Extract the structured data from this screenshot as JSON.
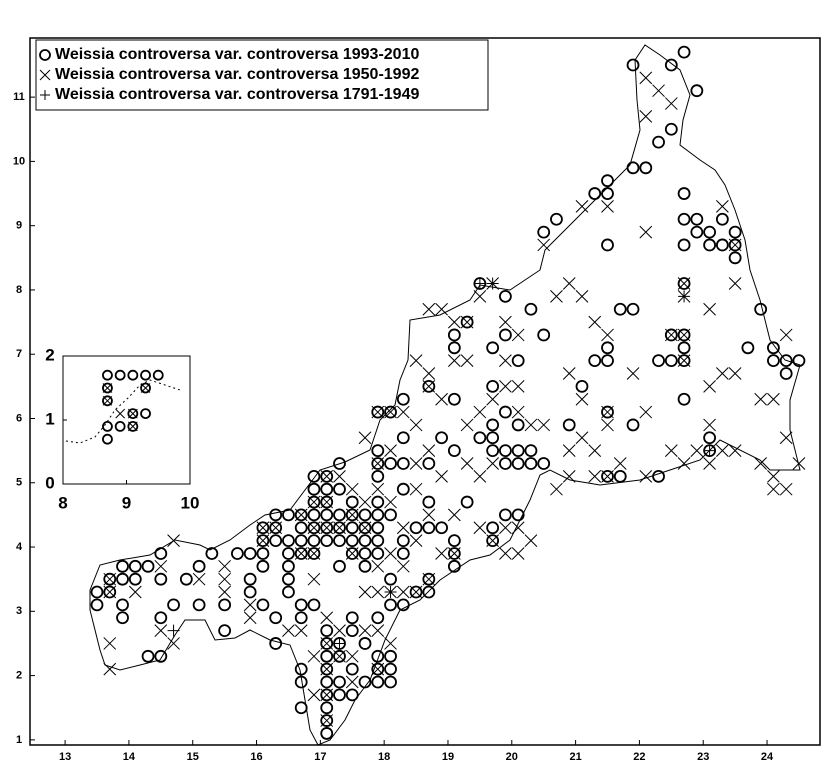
{
  "chart_data": [
    {
      "type": "scatter",
      "legend": "upper left",
      "xlim": [
        12.45,
        24.83
      ],
      "ylim": [
        0.92,
        11.92
      ],
      "xticks": [
        13,
        14,
        15,
        16,
        17,
        18,
        19,
        20,
        21,
        22,
        23,
        24
      ],
      "yticks": [
        1,
        2,
        3,
        4,
        5,
        6,
        7,
        8,
        9,
        10,
        11
      ],
      "series": [
        {
          "name": "Weissia controversa var. controversa 1993-2010",
          "marker": "circle",
          "color": "#000000",
          "x": [
            13.5,
            13.5,
            13.7,
            13.7,
            13.9,
            13.9,
            13.9,
            13.9,
            14.1,
            14.1,
            14.3,
            14.3,
            14.5,
            14.5,
            14.5,
            14.5,
            14.7,
            14.9,
            15.1,
            15.1,
            15.3,
            15.5,
            15.5,
            15.7,
            15.9,
            15.9,
            15.9,
            16.1,
            16.1,
            16.1,
            16.1,
            16.1,
            16.3,
            16.3,
            16.3,
            16.3,
            16.3,
            16.5,
            16.5,
            16.5,
            16.5,
            16.5,
            16.5,
            16.7,
            16.7,
            16.7,
            16.7,
            16.7,
            16.7,
            16.7,
            16.7,
            16.7,
            16.9,
            16.9,
            16.9,
            16.9,
            16.9,
            16.9,
            16.9,
            16.9,
            17.1,
            17.1,
            17.1,
            17.1,
            17.1,
            17.1,
            17.1,
            17.1,
            17.1,
            17.1,
            17.1,
            17.1,
            17.1,
            17.1,
            17.1,
            17.3,
            17.3,
            17.3,
            17.3,
            17.3,
            17.3,
            17.3,
            17.3,
            17.3,
            17.3,
            17.5,
            17.5,
            17.5,
            17.5,
            17.5,
            17.5,
            17.5,
            17.5,
            17.5,
            17.7,
            17.7,
            17.7,
            17.7,
            17.7,
            17.7,
            17.7,
            17.9,
            17.9,
            17.9,
            17.9,
            17.9,
            17.9,
            17.9,
            17.9,
            17.9,
            17.9,
            17.9,
            17.9,
            17.9,
            18.1,
            18.1,
            18.1,
            18.1,
            18.1,
            18.1,
            18.1,
            18.1,
            18.3,
            18.3,
            18.3,
            18.3,
            18.3,
            18.3,
            18.3,
            18.5,
            18.5,
            18.7,
            18.7,
            18.7,
            18.7,
            18.7,
            18.7,
            18.9,
            18.9,
            19.1,
            19.1,
            19.1,
            19.1,
            19.1,
            19.1,
            19.1,
            19.3,
            19.3,
            19.5,
            19.5,
            19.7,
            19.7,
            19.7,
            19.7,
            19.7,
            19.7,
            19.7,
            19.9,
            19.9,
            19.9,
            19.9,
            19.9,
            19.9,
            20.1,
            20.1,
            20.1,
            20.1,
            20.1,
            20.3,
            20.3,
            20.3,
            20.5,
            20.5,
            20.5,
            20.7,
            20.9,
            21.1,
            21.3,
            21.3,
            21.5,
            21.5,
            21.5,
            21.5,
            21.5,
            21.5,
            21.5,
            21.7,
            21.7,
            21.9,
            21.9,
            21.9,
            21.9,
            22.1,
            22.3,
            22.3,
            22.3,
            22.5,
            22.5,
            22.5,
            22.5,
            22.7,
            22.7,
            22.7,
            22.7,
            22.7,
            22.7,
            22.7,
            22.7,
            22.7,
            22.9,
            22.9,
            22.9,
            23.1,
            23.1,
            23.1,
            23.1,
            23.3,
            23.3,
            23.5,
            23.5,
            23.5,
            23.7,
            23.9,
            24.1,
            24.1,
            24.3,
            24.3,
            24.5
          ],
          "values": [
            3.3,
            3.1,
            3.5,
            3.3,
            3.7,
            3.5,
            3.1,
            2.9,
            3.7,
            3.5,
            3.7,
            2.3,
            3.9,
            3.5,
            2.9,
            2.3,
            3.1,
            3.5,
            3.7,
            3.1,
            3.9,
            3.1,
            2.7,
            3.9,
            3.9,
            3.5,
            3.3,
            4.3,
            4.1,
            3.9,
            3.7,
            3.1,
            4.5,
            4.3,
            4.1,
            2.9,
            2.5,
            4.5,
            4.1,
            3.9,
            3.7,
            3.5,
            3.3,
            4.5,
            4.3,
            4.1,
            3.9,
            3.1,
            2.9,
            2.1,
            1.9,
            1.5,
            5.1,
            4.9,
            4.7,
            4.5,
            4.3,
            4.1,
            3.9,
            3.1,
            5.1,
            4.9,
            4.7,
            4.5,
            4.3,
            4.1,
            2.7,
            2.5,
            2.3,
            2.1,
            1.9,
            1.7,
            1.5,
            1.3,
            1.1,
            5.3,
            4.9,
            4.5,
            4.3,
            4.1,
            3.7,
            2.5,
            2.3,
            1.9,
            1.7,
            4.7,
            4.5,
            4.3,
            4.1,
            3.9,
            2.9,
            2.7,
            2.1,
            1.7,
            4.5,
            4.3,
            4.1,
            3.9,
            3.7,
            2.5,
            1.9,
            6.1,
            5.5,
            5.3,
            5.1,
            4.7,
            4.5,
            4.3,
            4.1,
            3.9,
            2.9,
            2.3,
            2.1,
            1.9,
            6.1,
            5.3,
            4.5,
            3.5,
            3.1,
            2.3,
            2.1,
            1.9,
            6.3,
            5.7,
            5.3,
            4.9,
            4.1,
            3.9,
            3.1,
            4.3,
            3.3,
            6.5,
            5.3,
            4.7,
            4.3,
            3.5,
            3.3,
            5.7,
            4.3,
            7.3,
            7.1,
            6.3,
            5.5,
            4.1,
            3.9,
            3.7,
            7.5,
            4.7,
            8.1,
            5.7,
            7.1,
            6.5,
            5.9,
            5.7,
            5.5,
            4.3,
            4.1,
            7.9,
            7.3,
            6.1,
            5.5,
            5.3,
            4.5,
            6.9,
            5.9,
            5.5,
            5.3,
            4.5,
            7.7,
            5.5,
            5.3,
            8.9,
            7.3,
            5.3,
            9.1,
            5.9,
            6.5,
            9.5,
            6.9,
            9.7,
            9.5,
            8.7,
            7.1,
            6.9,
            6.1,
            5.1,
            7.7,
            5.1,
            11.5,
            9.9,
            7.7,
            5.9,
            9.9,
            10.3,
            6.9,
            5.1,
            11.5,
            10.5,
            7.3,
            6.9,
            11.7,
            9.5,
            9.1,
            8.7,
            8.1,
            7.3,
            7.1,
            6.9,
            6.3,
            11.1,
            9.1,
            8.9,
            8.9,
            8.7,
            5.7,
            5.5,
            9.1,
            8.7,
            8.9,
            8.7,
            8.5,
            7.1,
            7.7,
            7.1,
            6.9,
            6.9,
            6.7,
            6.9
          ]
        },
        {
          "name": "Weissia controversa var. controversa 1950-1992",
          "marker": "x",
          "color": "#000000",
          "x": [
            13.7,
            13.7,
            13.7,
            13.7,
            14.1,
            14.5,
            14.5,
            14.7,
            14.7,
            15.1,
            15.5,
            15.5,
            15.5,
            15.9,
            15.9,
            16.1,
            16.1,
            16.3,
            16.5,
            16.7,
            16.7,
            16.7,
            16.9,
            16.9,
            16.9,
            16.9,
            16.9,
            16.9,
            17.1,
            17.1,
            17.1,
            17.1,
            17.1,
            17.1,
            17.1,
            17.1,
            17.3,
            17.3,
            17.3,
            17.3,
            17.5,
            17.5,
            17.5,
            17.5,
            17.5,
            17.7,
            17.7,
            17.7,
            17.7,
            17.7,
            17.9,
            17.9,
            17.9,
            17.9,
            17.9,
            17.9,
            17.9,
            18.1,
            18.1,
            18.1,
            18.1,
            18.1,
            18.1,
            18.3,
            18.3,
            18.3,
            18.3,
            18.5,
            18.5,
            18.5,
            18.5,
            18.5,
            18.5,
            18.7,
            18.7,
            18.7,
            18.7,
            18.7,
            18.7,
            18.9,
            18.9,
            18.9,
            18.9,
            19.1,
            19.1,
            19.1,
            19.1,
            19.3,
            19.3,
            19.3,
            19.3,
            19.5,
            19.5,
            19.5,
            19.5,
            19.7,
            19.7,
            19.7,
            19.7,
            19.9,
            19.9,
            19.9,
            19.9,
            19.9,
            20.1,
            20.1,
            20.1,
            20.1,
            20.1,
            20.3,
            20.3,
            20.5,
            20.5,
            20.7,
            20.7,
            20.9,
            20.9,
            20.9,
            20.9,
            21.1,
            21.1,
            21.1,
            21.1,
            21.3,
            21.3,
            21.3,
            21.5,
            21.5,
            21.5,
            21.5,
            21.5,
            21.7,
            21.9,
            22.1,
            22.1,
            22.1,
            22.1,
            22.1,
            22.3,
            22.5,
            22.5,
            22.5,
            22.7,
            22.7,
            22.7,
            22.7,
            22.7,
            22.9,
            23.1,
            23.1,
            23.1,
            23.1,
            23.3,
            23.3,
            23.3,
            23.5,
            23.5,
            23.5,
            23.5,
            23.9,
            23.9,
            24.1,
            24.1,
            24.1,
            24.3,
            24.3,
            24.3,
            24.5
          ],
          "values": [
            3.5,
            3.3,
            2.5,
            2.1,
            3.3,
            3.7,
            2.7,
            4.1,
            2.5,
            3.5,
            3.7,
            3.5,
            3.3,
            3.1,
            2.9,
            4.3,
            4.1,
            4.3,
            2.7,
            4.5,
            3.9,
            2.7,
            4.7,
            4.3,
            3.9,
            3.5,
            2.3,
            1.7,
            5.1,
            4.7,
            4.3,
            2.9,
            2.5,
            2.1,
            1.7,
            1.3,
            5.1,
            4.3,
            2.7,
            2.3,
            4.9,
            4.5,
            3.9,
            2.3,
            1.9,
            5.7,
            4.7,
            4.3,
            3.3,
            2.7,
            6.1,
            5.3,
            4.9,
            3.7,
            3.3,
            2.7,
            2.1,
            6.1,
            5.5,
            4.7,
            3.9,
            3.3,
            2.5,
            6.1,
            4.3,
            3.7,
            3.3,
            6.9,
            5.9,
            5.3,
            4.9,
            4.1,
            3.3,
            7.7,
            6.7,
            6.5,
            5.5,
            4.5,
            3.5,
            7.7,
            6.3,
            5.1,
            3.9,
            7.5,
            6.9,
            4.5,
            3.9,
            7.5,
            6.9,
            5.9,
            5.3,
            7.9,
            6.1,
            5.1,
            4.3,
            8.1,
            6.3,
            5.3,
            4.1,
            7.5,
            6.9,
            6.5,
            4.3,
            3.9,
            7.3,
            6.5,
            6.1,
            4.3,
            3.9,
            5.9,
            4.1,
            8.7,
            5.9,
            7.9,
            4.9,
            8.1,
            6.7,
            5.5,
            5.1,
            9.3,
            7.9,
            6.3,
            5.7,
            7.5,
            5.5,
            5.1,
            9.3,
            7.3,
            6.1,
            5.9,
            5.1,
            5.3,
            6.7,
            11.3,
            10.7,
            8.9,
            6.1,
            5.1,
            11.1,
            10.9,
            7.3,
            5.5,
            8.1,
            7.9,
            7.3,
            6.9,
            5.3,
            5.5,
            7.7,
            6.5,
            5.9,
            5.3,
            9.3,
            6.7,
            5.5,
            8.7,
            8.1,
            6.7,
            5.5,
            5.3,
            6.3,
            6.3,
            5.1,
            4.9,
            7.3,
            5.7,
            4.9,
            5.3
          ]
        },
        {
          "name": "Weissia controversa var. controversa 1791-1949",
          "marker": "plus",
          "color": "#000000",
          "x": [
            14.7,
            17.3,
            18.1,
            19.5,
            19.7,
            22.7,
            23.1
          ],
          "values": [
            2.7,
            2.5,
            3.3,
            8.1,
            8.1,
            7.9,
            5.5
          ]
        }
      ]
    },
    {
      "type": "scatter",
      "xlim": [
        8,
        10
      ],
      "ylim": [
        0,
        2
      ],
      "xticks": [
        8,
        9,
        10
      ],
      "yticks": [
        0,
        1,
        2
      ],
      "series": [
        {
          "marker": "circle",
          "color": "#000000",
          "x": [
            8.7,
            8.9,
            9.1,
            9.3,
            9.5,
            8.7,
            9.3,
            8.7,
            9.1,
            9.3,
            8.7,
            8.9,
            9.1,
            8.7
          ],
          "values": [
            1.7,
            1.7,
            1.7,
            1.7,
            1.7,
            1.5,
            1.5,
            1.3,
            1.1,
            1.1,
            0.9,
            0.9,
            0.9,
            0.7
          ]
        },
        {
          "marker": "x",
          "color": "#000000",
          "x": [
            8.7,
            8.7,
            9.3,
            9.1,
            9.1,
            8.9
          ],
          "values": [
            1.5,
            1.3,
            1.5,
            1.1,
            0.9,
            1.1
          ]
        }
      ]
    }
  ]
}
